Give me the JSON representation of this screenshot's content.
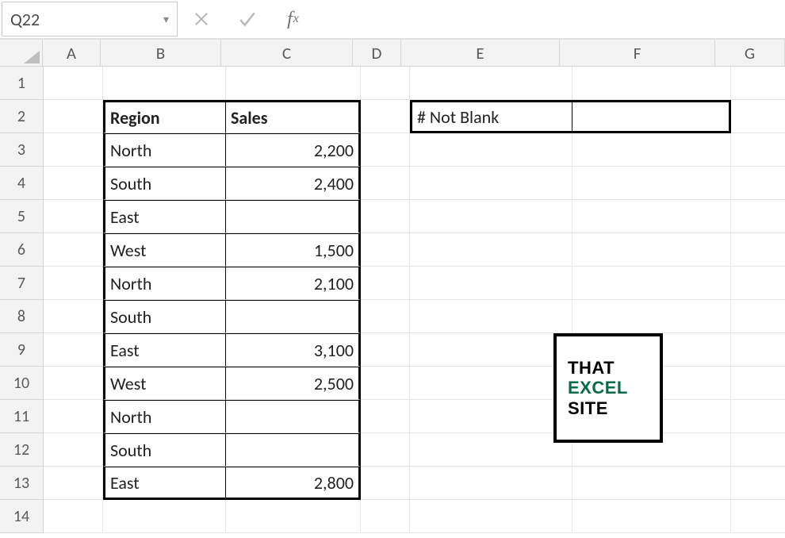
{
  "nameBox": "Q22",
  "formula": "",
  "columns": [
    "A",
    "B",
    "C",
    "D",
    "E",
    "F",
    "G"
  ],
  "rowCount": 14,
  "table": {
    "headers": {
      "region": "Region",
      "sales": "Sales"
    },
    "rows": [
      {
        "region": "North",
        "sales": "2,200"
      },
      {
        "region": "South",
        "sales": "2,400"
      },
      {
        "region": "East",
        "sales": ""
      },
      {
        "region": "West",
        "sales": "1,500"
      },
      {
        "region": "North",
        "sales": "2,100"
      },
      {
        "region": "South",
        "sales": ""
      },
      {
        "region": "East",
        "sales": "3,100"
      },
      {
        "region": "West",
        "sales": "2,500"
      },
      {
        "region": "North",
        "sales": ""
      },
      {
        "region": "South",
        "sales": ""
      },
      {
        "region": "East",
        "sales": "2,800"
      }
    ]
  },
  "side": {
    "label": "# Not Blank",
    "value": ""
  },
  "logo": {
    "line1": "THAT",
    "line2": "EXCEL",
    "line3": "SITE"
  },
  "colors": {
    "gridLine": "#e4e4e4",
    "headerBg": "#f3f3f3",
    "headerBorder": "#d6d6d6",
    "thickBorder": "#000000",
    "logoAccent": "#0a6b45"
  },
  "colWidths": {
    "A": 75,
    "B": 155,
    "C": 170,
    "D": 62,
    "E": 205,
    "F": 200,
    "G": 90
  }
}
